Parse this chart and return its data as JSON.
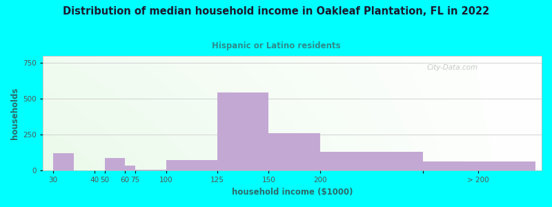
{
  "title": "Distribution of median household income in Oakleaf Plantation, FL in 2022",
  "subtitle": "Hispanic or Latino residents",
  "xlabel": "household income ($1000)",
  "ylabel": "households",
  "background_outer": "#00FFFF",
  "bar_color": "#C4A8D4",
  "title_color": "#1A1A2E",
  "subtitle_color": "#2E8B8B",
  "axis_label_color": "#2E6B6B",
  "tick_color": "#555555",
  "grid_color": "#CCCCCC",
  "values": [
    120,
    0,
    90,
    35,
    8,
    75,
    545,
    260,
    130,
    65
  ],
  "bar_lefts": [
    20,
    40,
    45,
    55,
    60,
    75,
    100,
    125,
    150,
    200
  ],
  "bar_widths": [
    10,
    5,
    10,
    5,
    15,
    25,
    25,
    25,
    50,
    55
  ],
  "tick_positions": [
    20,
    40,
    45,
    55,
    60,
    75,
    100,
    125,
    150,
    200,
    255
  ],
  "tick_labels": [
    "",
    "30",
    "40",
    "50",
    "60",
    "75",
    "100",
    "125",
    "150",
    "200",
    "> 200"
  ],
  "ylim": [
    0,
    800
  ],
  "xlim": [
    15,
    258
  ],
  "yticks": [
    0,
    250,
    500,
    750
  ],
  "watermark": "City-Data.com"
}
